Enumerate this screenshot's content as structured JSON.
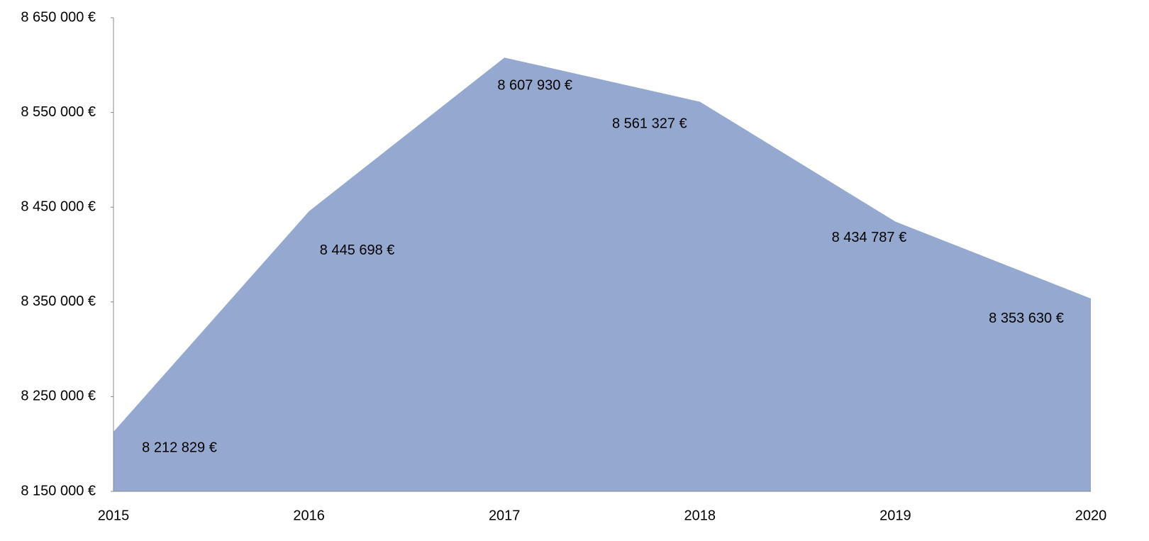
{
  "chart_data": {
    "type": "area",
    "categories": [
      "2015",
      "2016",
      "2017",
      "2018",
      "2019",
      "2020"
    ],
    "values": [
      8212829,
      8445698,
      8607930,
      8561327,
      8434787,
      8353630
    ],
    "value_labels": [
      "8 212 829 €",
      "8 445 698 €",
      "8 607 930 €",
      "8 561 327 €",
      "8 434 787 €",
      "8 353 630 €"
    ],
    "color": "#95a9d0",
    "ylim": [
      8150000,
      8650000
    ],
    "yticks": [
      {
        "value": 8150000,
        "label": "8 150 000 €"
      },
      {
        "value": 8250000,
        "label": "8 250 000 €"
      },
      {
        "value": 8350000,
        "label": "8 350 000 €"
      },
      {
        "value": 8450000,
        "label": "8 450 000 €"
      },
      {
        "value": 8550000,
        "label": "8 550 000 €"
      },
      {
        "value": 8650000,
        "label": "8 650 000 €"
      }
    ],
    "grid": false
  }
}
